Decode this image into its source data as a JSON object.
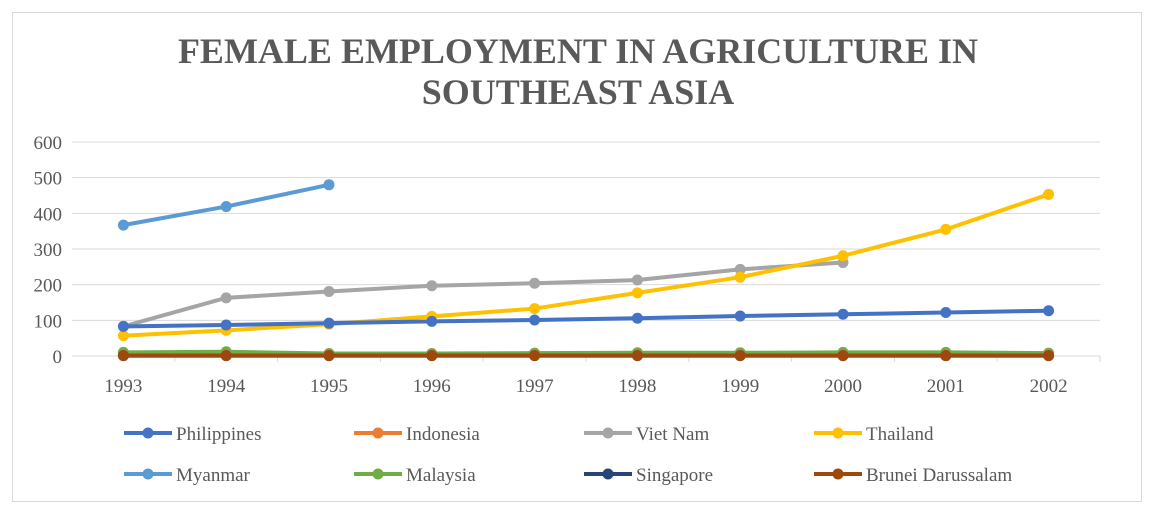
{
  "chart_data": {
    "type": "line",
    "title_lines": [
      "FEMALE EMPLOYMENT IN AGRICULTURE IN",
      "SOUTHEAST ASIA"
    ],
    "x": [
      "1993",
      "1994",
      "1995",
      "1996",
      "1997",
      "1998",
      "1999",
      "2000",
      "2001",
      "2002"
    ],
    "ylim": [
      0,
      600
    ],
    "yticks": [
      0,
      100,
      200,
      300,
      400,
      500,
      600
    ],
    "grid": true,
    "legend_position": "bottom",
    "series": [
      {
        "name": "Philippines",
        "color": "#4472c4",
        "values": [
          83,
          87,
          92,
          97,
          101,
          106,
          112,
          117,
          122,
          127
        ]
      },
      {
        "name": "Indonesia",
        "color": "#ed7d31",
        "values": [
          2,
          2,
          2,
          2,
          2,
          2,
          2,
          2,
          2,
          2
        ]
      },
      {
        "name": "Viet Nam",
        "color": "#a5a5a5",
        "values": [
          83,
          163,
          181,
          197,
          204,
          213,
          243,
          262,
          null,
          null
        ]
      },
      {
        "name": "Thailand",
        "color": "#ffc000",
        "values": [
          57,
          72,
          89,
          111,
          133,
          177,
          221,
          281,
          355,
          453
        ]
      },
      {
        "name": "Myanmar",
        "color": "#5b9bd5",
        "values": [
          367,
          419,
          480,
          null,
          null,
          null,
          null,
          null,
          null,
          null
        ]
      },
      {
        "name": "Malaysia",
        "color": "#70ad47",
        "values": [
          10,
          12,
          7,
          7,
          8,
          9,
          9,
          10,
          10,
          8
        ]
      },
      {
        "name": "Singapore",
        "color": "#264478",
        "values": [
          1,
          1,
          1,
          1,
          1,
          1,
          1,
          1,
          1,
          1
        ]
      },
      {
        "name": "Brunei Darussalam",
        "color": "#9e480e",
        "values": [
          1,
          1,
          1,
          1,
          1,
          1,
          1,
          1,
          1,
          1
        ]
      }
    ]
  }
}
